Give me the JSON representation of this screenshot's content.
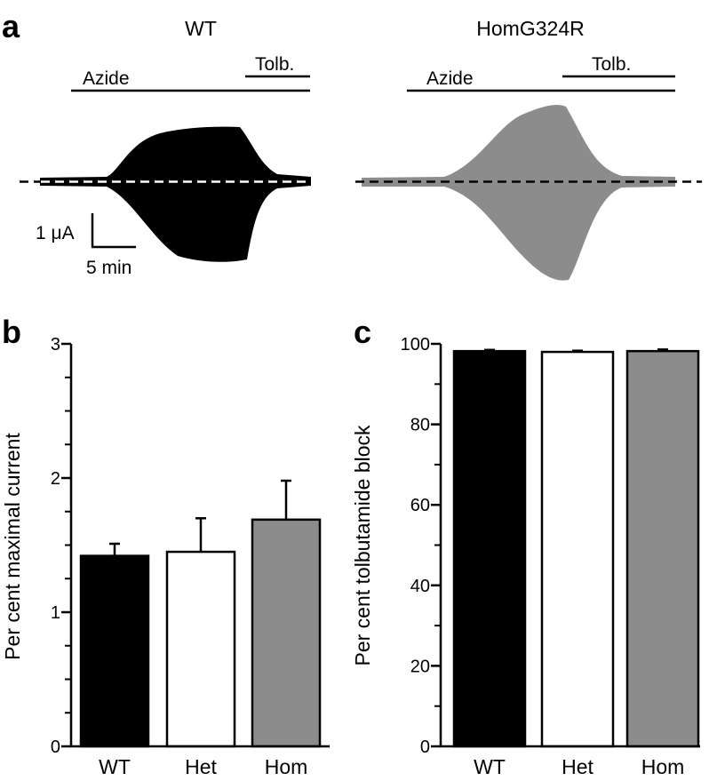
{
  "panel_letters": {
    "a": "a",
    "b": "b",
    "c": "c"
  },
  "panel_a": {
    "left_title": "WT",
    "right_title": "HomG324R",
    "azide_label": "Azide",
    "tolb_label": "Tolb.",
    "scale_current": "1 μA",
    "scale_time": "5 min",
    "colors": {
      "wt": "#000000",
      "hom": "#8c8c8c"
    }
  },
  "chart_data": [
    {
      "type": "bar",
      "panel": "b",
      "categories": [
        "WT",
        "Het",
        "Hom"
      ],
      "values": [
        1.42,
        1.45,
        1.69
      ],
      "errors": [
        0.09,
        0.25,
        0.29
      ],
      "colors": [
        "#000000",
        "#ffffff",
        "#8c8c8c"
      ],
      "ylabel": "Per cent maximal current",
      "ylim": [
        0,
        3
      ],
      "yticks": [
        "0",
        "1",
        "2",
        "3"
      ],
      "minor_step": 0.25
    },
    {
      "type": "bar",
      "panel": "c",
      "categories": [
        "WT",
        "Het",
        "Hom"
      ],
      "values": [
        98.2,
        98.0,
        98.2
      ],
      "errors": [
        0.3,
        0.3,
        0.4
      ],
      "colors": [
        "#000000",
        "#ffffff",
        "#8c8c8c"
      ],
      "ylabel": "Per cent tolbutamide block",
      "ylim": [
        0,
        100
      ],
      "yticks": [
        "0",
        "20",
        "40",
        "60",
        "80",
        "100"
      ],
      "minor_step": 10
    }
  ]
}
